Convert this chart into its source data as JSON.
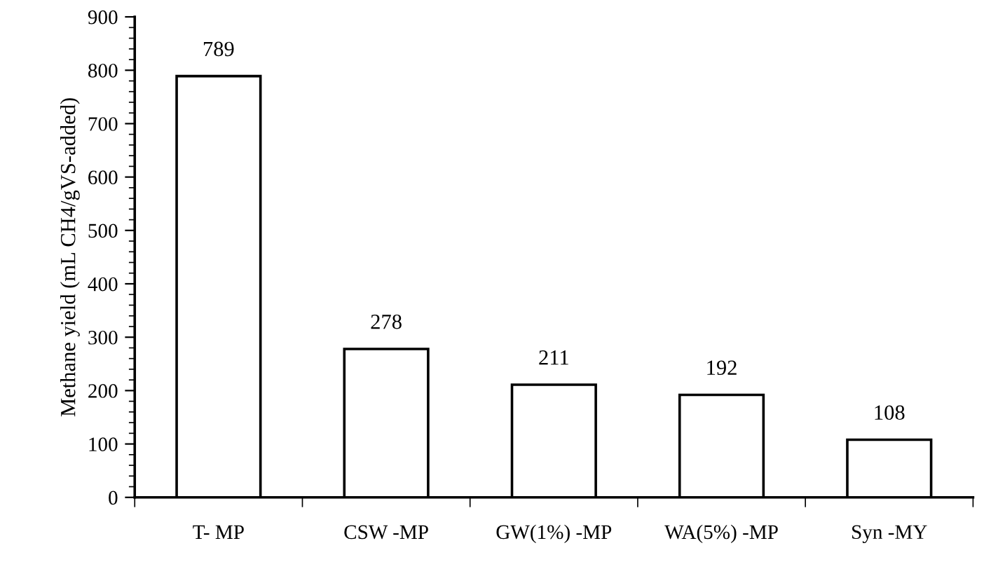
{
  "chart_data": {
    "type": "bar",
    "categories": [
      "T- MP",
      "CSW -MP",
      "GW(1%) -MP",
      "WA(5%) -MP",
      "Syn -MY"
    ],
    "values": [
      789,
      278,
      211,
      192,
      108
    ],
    "color": "#ffffff",
    "ylabel": "Methane yield (mL CH4/gVS-added)",
    "ylim": [
      0,
      900
    ],
    "yticks": [
      0,
      100,
      200,
      300,
      400,
      500,
      600,
      700,
      800,
      900
    ],
    "data_labels": true,
    "grid": false
  }
}
